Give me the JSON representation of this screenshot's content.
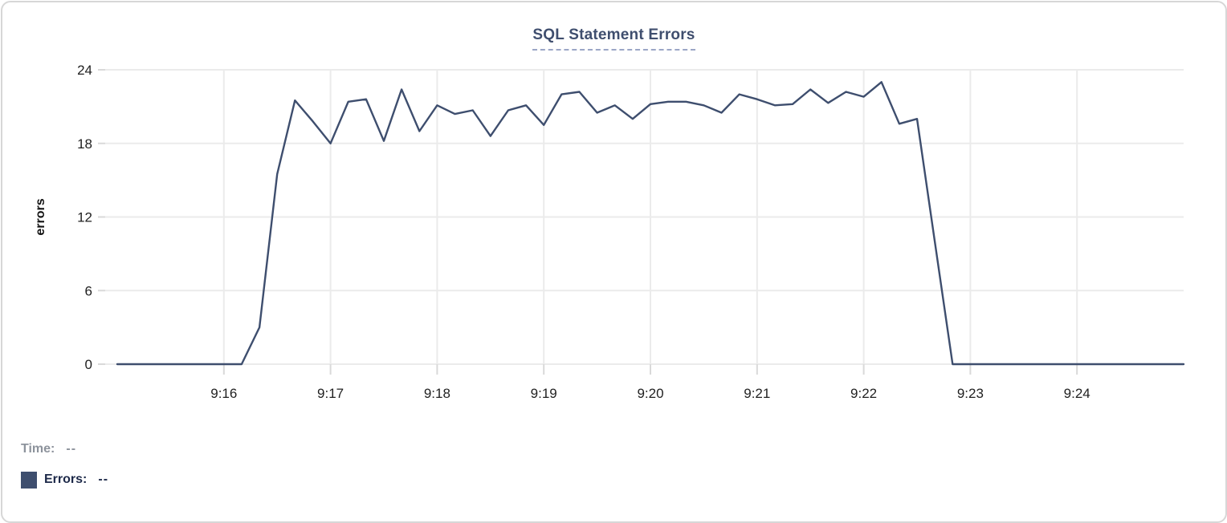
{
  "chart_data": {
    "type": "line",
    "title": "SQL Statement Errors",
    "xlabel": "",
    "ylabel": "errors",
    "x_start": "9:15:00",
    "x_end": "9:25:00",
    "point_interval_seconds": 10,
    "x_tick_labels": [
      "9:16",
      "9:17",
      "9:18",
      "9:19",
      "9:20",
      "9:21",
      "9:22",
      "9:23",
      "9:24"
    ],
    "y_ticks": [
      0,
      6,
      12,
      18,
      24
    ],
    "ylim": [
      0,
      24
    ],
    "grid": true,
    "legend_position": "bottom-left",
    "line_color": "#3e4e6e",
    "grid_color": "#ebebeb",
    "tick_color": "#d9d9d9",
    "axis_text_color": "#1f1f1f",
    "series": [
      {
        "name": "Errors",
        "values": [
          0,
          0,
          0,
          0,
          0,
          0,
          0,
          0,
          3,
          15.5,
          21.5,
          19.8,
          18,
          21.4,
          21.6,
          18.2,
          22.4,
          19,
          21.1,
          20.4,
          20.7,
          18.6,
          20.7,
          21.1,
          19.5,
          22,
          22.2,
          20.5,
          21.1,
          20,
          21.2,
          21.4,
          21.4,
          21.1,
          20.5,
          22,
          21.6,
          21.1,
          21.2,
          22.4,
          21.3,
          22.2,
          21.8,
          23,
          19.6,
          20,
          10,
          0,
          0,
          0,
          0,
          0,
          0,
          0,
          0,
          0,
          0,
          0,
          0,
          0,
          0
        ]
      }
    ]
  },
  "legend": {
    "time_label": "Time:",
    "time_value": "--",
    "errors_label": "Errors:",
    "errors_value": "--",
    "swatch_color": "#3e4e6e"
  }
}
